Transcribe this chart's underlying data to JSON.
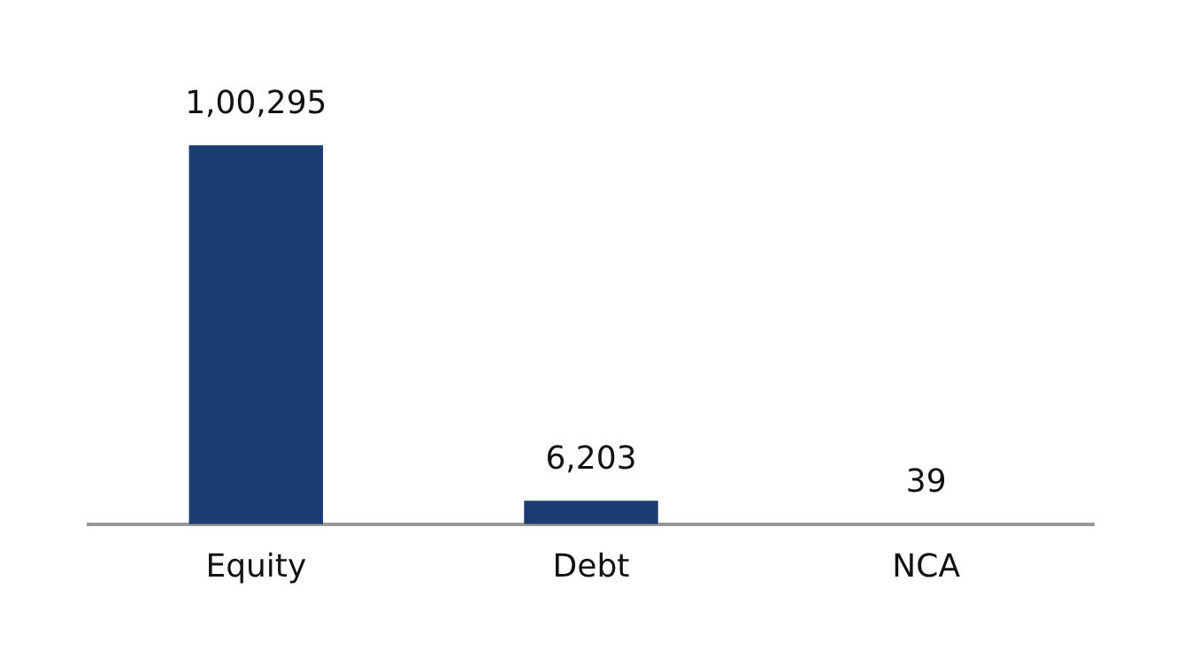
{
  "chart_data": {
    "type": "bar",
    "categories": [
      "Equity",
      "Debt",
      "NCA"
    ],
    "values": [
      100295,
      6203,
      39
    ],
    "color": "#1b3c70",
    "value_labels": [
      "1,00,295",
      "6,203",
      "39"
    ],
    "grid": false,
    "legend": false,
    "tick_labels": "x"
  }
}
